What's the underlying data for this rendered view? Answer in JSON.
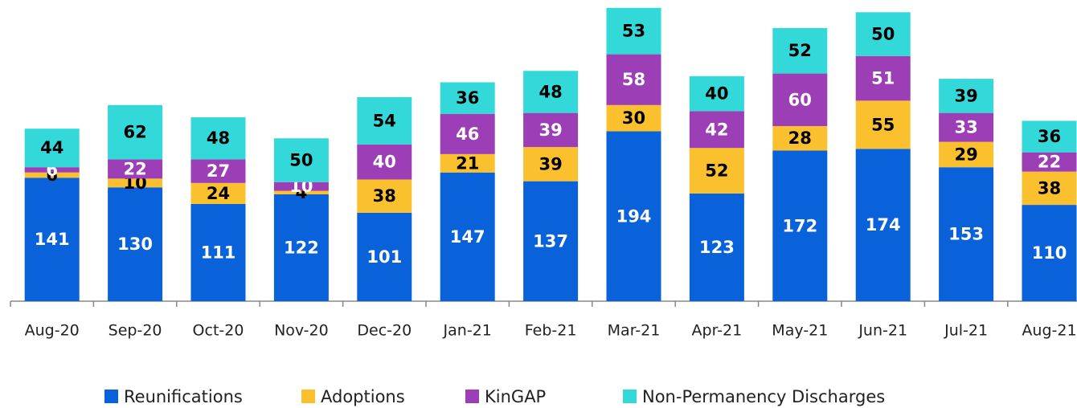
{
  "chart_data": {
    "type": "stacked-bar",
    "categories": [
      "Aug-20",
      "Sep-20",
      "Oct-20",
      "Nov-20",
      "Dec-20",
      "Jan-21",
      "Feb-21",
      "Mar-21",
      "Apr-21",
      "May-21",
      "Jun-21",
      "Jul-21",
      "Aug-21"
    ],
    "series": [
      {
        "name": "Reunifications",
        "color": "#0962da",
        "values": [
          141,
          130,
          111,
          122,
          101,
          147,
          137,
          194,
          123,
          172,
          174,
          153,
          110
        ]
      },
      {
        "name": "Adoptions",
        "color": "#fbc02d",
        "values": [
          6,
          10,
          24,
          4,
          38,
          21,
          39,
          30,
          52,
          28,
          55,
          29,
          38
        ]
      },
      {
        "name": "KinGAP",
        "color": "#9c3fb6",
        "values": [
          6,
          22,
          27,
          10,
          40,
          46,
          39,
          58,
          42,
          60,
          51,
          33,
          22
        ]
      },
      {
        "name": "Non-Permanency Discharges",
        "color": "#33d8d8",
        "values": [
          44,
          62,
          48,
          50,
          54,
          36,
          48,
          53,
          40,
          52,
          50,
          39,
          36
        ]
      }
    ],
    "ylim": [
      0,
      344
    ]
  }
}
